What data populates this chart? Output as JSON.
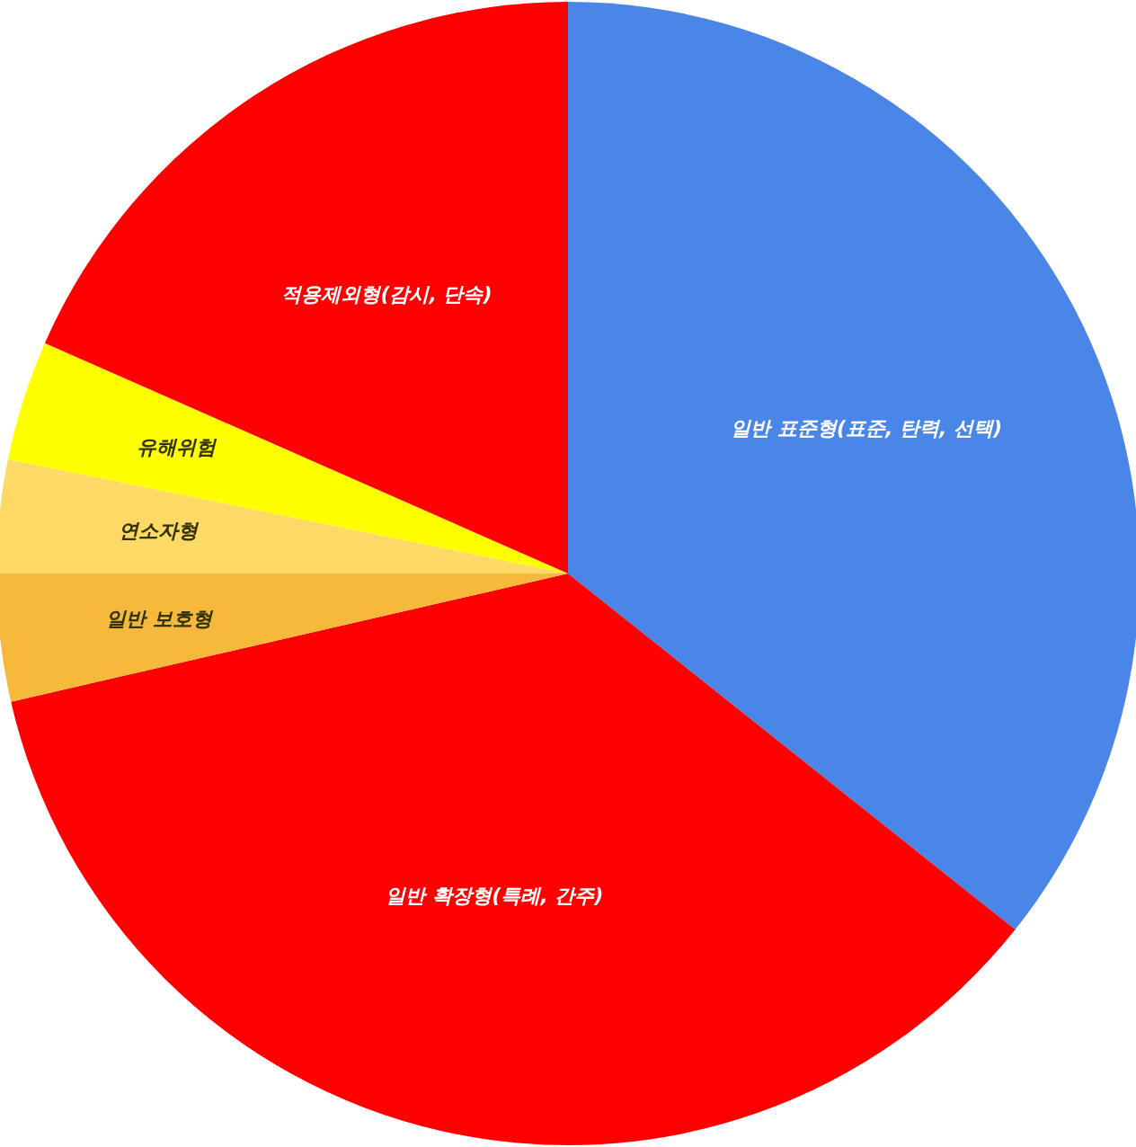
{
  "chart_data": {
    "type": "pie",
    "categories": [
      "일반 표준형(표준, 탄력, 선택)",
      "일반 확장형(특례, 간주)",
      "일반 보호형",
      "연소자형",
      "유해위험",
      "적용제외형(감시, 단속)"
    ],
    "values": [
      35.7,
      35.7,
      3.6,
      3.2,
      3.4,
      18.4
    ],
    "colors": [
      "#4a86e8",
      "#ff0000",
      "#f6b93b",
      "#ffd966",
      "#ffff00",
      "#ff0000"
    ],
    "data_labels": false
  }
}
